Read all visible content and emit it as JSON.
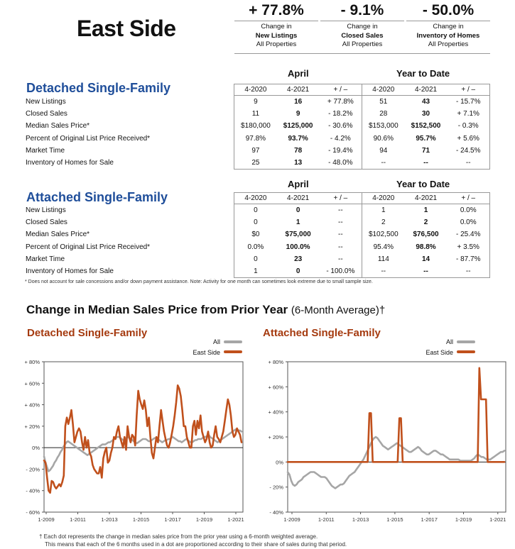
{
  "page_title": "East Side",
  "kpis": [
    {
      "value": "+ 77.8%",
      "line1": "Change in",
      "line2": "New Listings",
      "line3": "All Properties"
    },
    {
      "value": "- 9.1%",
      "line1": "Change in",
      "line2": "Closed Sales",
      "line3": "All Properties"
    },
    {
      "value": "- 50.0%",
      "line1": "Change in",
      "line2": "Inventory of Homes",
      "line3": "All Properties"
    }
  ],
  "detached": {
    "title": "Detached Single-Family",
    "april_label": "April",
    "ytd_label": "Year to Date",
    "headers": [
      "4-2020",
      "4-2021",
      "+ / –",
      "4-2020",
      "4-2021",
      "+ / –"
    ],
    "rows": [
      {
        "label": "New Listings",
        "v": [
          "9",
          "16",
          "+ 77.8%",
          "51",
          "43",
          "- 15.7%"
        ]
      },
      {
        "label": "Closed Sales",
        "v": [
          "11",
          "9",
          "- 18.2%",
          "28",
          "30",
          "+ 7.1%"
        ]
      },
      {
        "label": "Median Sales Price*",
        "v": [
          "$180,000",
          "$125,000",
          "- 30.6%",
          "$153,000",
          "$152,500",
          "- 0.3%"
        ]
      },
      {
        "label": "Percent of Original List Price Received*",
        "v": [
          "97.8%",
          "93.7%",
          "- 4.2%",
          "90.6%",
          "95.7%",
          "+ 5.6%"
        ]
      },
      {
        "label": "Market Time",
        "v": [
          "97",
          "78",
          "- 19.4%",
          "94",
          "71",
          "- 24.5%"
        ]
      },
      {
        "label": "Inventory of Homes for Sale",
        "v": [
          "25",
          "13",
          "- 48.0%",
          "--",
          "--",
          "--"
        ]
      }
    ]
  },
  "attached": {
    "title": "Attached Single-Family",
    "april_label": "April",
    "ytd_label": "Year to Date",
    "headers": [
      "4-2020",
      "4-2021",
      "+ / –",
      "4-2020",
      "4-2021",
      "+ / –"
    ],
    "rows": [
      {
        "label": "New Listings",
        "v": [
          "0",
          "0",
          "--",
          "1",
          "1",
          "0.0%"
        ]
      },
      {
        "label": "Closed Sales",
        "v": [
          "0",
          "1",
          "--",
          "2",
          "2",
          "0.0%"
        ]
      },
      {
        "label": "Median Sales Price*",
        "v": [
          "$0",
          "$75,000",
          "--",
          "$102,500",
          "$76,500",
          "- 25.4%"
        ]
      },
      {
        "label": "Percent of Original List Price Received*",
        "v": [
          "0.0%",
          "100.0%",
          "--",
          "95.4%",
          "98.8%",
          "+ 3.5%"
        ]
      },
      {
        "label": "Market Time",
        "v": [
          "0",
          "23",
          "--",
          "114",
          "14",
          "- 87.7%"
        ]
      },
      {
        "label": "Inventory of Homes for Sale",
        "v": [
          "1",
          "0",
          "- 100.0%",
          "--",
          "--",
          "--"
        ]
      }
    ]
  },
  "footnote": "* Does not account for sale concessions and/or down payment assistance. Note: Activity for one month can sometimes look extreme due to small sample size.",
  "chart_section": {
    "title": "Change in Median Sales Price from Prior Year",
    "subtitle": "(6-Month Average)†"
  },
  "bottom_note": {
    "line1": "† Each dot represents the change in median sales price from the prior year using a 6-month weighted average.",
    "line2": "This means that each of the 6 months used in a dot are proportioned according to their share of sales during that period."
  },
  "colors": {
    "all": "#a6a6a6",
    "east_side": "#c0501c",
    "section_blue": "#1f4e9a",
    "chart_title": "#a53a0f"
  },
  "chart_data": [
    {
      "type": "line",
      "title": "Detached Single-Family",
      "x_ticks": [
        "1-2009",
        "1-2011",
        "1-2013",
        "1-2015",
        "1-2017",
        "1-2019",
        "1-2021"
      ],
      "y_ticks": [
        "+ 80%",
        "+ 60%",
        "+ 40%",
        "+ 20%",
        "0%",
        "- 20%",
        "- 40%",
        "- 60%"
      ],
      "ylim": [
        -60,
        80
      ],
      "x_start": "1-2009",
      "series": [
        {
          "name": "All",
          "values": [
            -8,
            -14,
            -18,
            -22,
            -21,
            -19,
            -17,
            -14,
            -12,
            -9,
            -7,
            -4,
            -2,
            1,
            3,
            5,
            6,
            5,
            4,
            3,
            2,
            1,
            0,
            -1,
            -2,
            -3,
            -4,
            -5,
            -6,
            -7,
            -6,
            -5,
            -4,
            -3,
            -2,
            -1,
            0,
            1,
            2,
            3,
            3,
            3,
            4,
            5,
            5,
            6,
            7,
            8,
            9,
            10,
            10,
            9,
            8,
            7,
            8,
            9,
            10,
            9,
            8,
            7,
            6,
            5,
            4,
            5,
            6,
            7,
            8,
            8,
            8,
            7,
            6,
            6,
            7,
            8,
            9,
            9,
            8,
            7,
            6,
            5,
            6,
            7,
            7,
            8,
            8,
            9,
            10,
            9,
            8,
            7,
            6,
            6,
            5,
            6,
            7,
            8,
            7,
            6,
            5,
            5,
            6,
            7,
            7,
            8,
            8,
            8,
            9,
            10,
            10,
            11,
            12,
            10,
            9,
            8,
            7,
            6,
            5,
            6,
            7,
            8,
            9,
            10,
            11,
            12,
            13,
            14,
            15,
            16,
            17,
            17,
            16,
            16,
            15
          ]
        },
        {
          "name": "East Side",
          "values": [
            -12,
            -14,
            -28,
            -40,
            -42,
            -31,
            -32,
            -36,
            -38,
            -36,
            -34,
            -36,
            -32,
            -26,
            20,
            28,
            22,
            28,
            35,
            22,
            5,
            10,
            15,
            18,
            15,
            5,
            -2,
            10,
            0,
            7,
            -5,
            -8,
            -16,
            -20,
            -22,
            -24,
            -24,
            -18,
            -28,
            -10,
            -4,
            0,
            -14,
            -12,
            -5,
            0,
            10,
            8,
            15,
            20,
            10,
            5,
            0,
            10,
            -2,
            20,
            10,
            5,
            12,
            10,
            2,
            30,
            53,
            45,
            40,
            36,
            44,
            35,
            20,
            28,
            10,
            -5,
            -10,
            0,
            10,
            5,
            20,
            35,
            25,
            15,
            8,
            2,
            0,
            5,
            12,
            20,
            30,
            42,
            58,
            55,
            48,
            35,
            20,
            20,
            10,
            5,
            0,
            0,
            20,
            25,
            12,
            25,
            18,
            30,
            15,
            10,
            5,
            8,
            15,
            5,
            0,
            2,
            12,
            20,
            10,
            8,
            5,
            10,
            15,
            25,
            35,
            45,
            40,
            30,
            15,
            10,
            12,
            18,
            15,
            12,
            5
          ]
        }
      ]
    },
    {
      "type": "line",
      "title": "Attached Single-Family",
      "x_ticks": [
        "1-2009",
        "1-2011",
        "1-2013",
        "1-2015",
        "1-2017",
        "1-2019",
        "1-2021"
      ],
      "y_ticks": [
        "+ 80%",
        "+ 60%",
        "+ 40%",
        "+ 20%",
        "0%",
        "- 20%",
        "- 40%"
      ],
      "ylim": [
        -40,
        80
      ],
      "x_start": "1-2009",
      "series": [
        {
          "name": "All",
          "values": [
            -8,
            -10,
            -15,
            -18,
            -19,
            -18,
            -16,
            -15,
            -14,
            -12,
            -11,
            -10,
            -9,
            -8,
            -8,
            -8,
            -9,
            -10,
            -11,
            -12,
            -12,
            -12,
            -13,
            -15,
            -17,
            -19,
            -20,
            -21,
            -20,
            -19,
            -18,
            -18,
            -17,
            -15,
            -13,
            -11,
            -10,
            -9,
            -8,
            -6,
            -4,
            -2,
            0,
            2,
            5,
            8,
            11,
            14,
            17,
            19,
            20,
            19,
            17,
            15,
            13,
            12,
            11,
            10,
            11,
            12,
            13,
            14,
            15,
            14,
            13,
            12,
            11,
            10,
            9,
            8,
            8,
            9,
            10,
            11,
            12,
            11,
            9,
            8,
            7,
            6,
            6,
            7,
            8,
            9,
            9,
            8,
            7,
            6,
            6,
            5,
            4,
            3,
            2,
            2,
            2,
            2,
            2,
            2,
            1,
            1,
            1,
            1,
            1,
            1,
            1,
            2,
            3,
            5,
            6,
            5,
            4,
            4,
            3,
            2,
            2,
            2,
            3,
            4,
            5,
            6,
            7,
            8,
            8,
            9
          ]
        },
        {
          "name": "East Side",
          "values": [
            0,
            0,
            0,
            0,
            0,
            0,
            0,
            0,
            0,
            0,
            0,
            0,
            0,
            0,
            0,
            0,
            0,
            0,
            0,
            0,
            0,
            0,
            0,
            0,
            0,
            0,
            0,
            0,
            0,
            0,
            0,
            0,
            0,
            0,
            0,
            0,
            0,
            0,
            0,
            0,
            0,
            0,
            0,
            0,
            0,
            0,
            0,
            0,
            0,
            39,
            39,
            0,
            0,
            0,
            0,
            0,
            0,
            0,
            0,
            0,
            0,
            0,
            0,
            0,
            0,
            0,
            0,
            35,
            35,
            0,
            0,
            0,
            0,
            0,
            0,
            0,
            0,
            0,
            0,
            0,
            0,
            0,
            0,
            0,
            0,
            0,
            0,
            0,
            0,
            0,
            0,
            0,
            0,
            0,
            0,
            0,
            0,
            0,
            0,
            0,
            0,
            0,
            0,
            0,
            0,
            0,
            0,
            0,
            0,
            0,
            0,
            0,
            0,
            0,
            0,
            75,
            50,
            50,
            50,
            50,
            0,
            0,
            0,
            0,
            0,
            0,
            0,
            0,
            0,
            0,
            0
          ]
        }
      ]
    }
  ]
}
